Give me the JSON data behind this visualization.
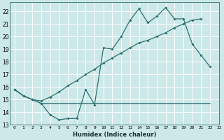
{
  "background_color": "#cce8e8",
  "grid_color": "#ffffff",
  "line_color": "#2d7070",
  "x_label": "Humidex (Indice chaleur)",
  "xlim": [
    -0.5,
    23
  ],
  "ylim": [
    13,
    22.7
  ],
  "yticks": [
    13,
    14,
    15,
    16,
    17,
    18,
    19,
    20,
    21,
    22
  ],
  "xticks": [
    0,
    1,
    2,
    3,
    4,
    5,
    6,
    7,
    8,
    9,
    10,
    11,
    12,
    13,
    14,
    15,
    16,
    17,
    18,
    19,
    20,
    21,
    22,
    23
  ],
  "curve1_x": [
    0,
    1,
    2,
    3,
    4,
    5,
    6,
    7,
    8,
    9,
    10,
    11,
    12,
    13,
    14,
    15,
    16,
    17,
    18,
    19,
    20,
    21,
    22
  ],
  "curve1_y": [
    15.8,
    15.3,
    15.0,
    14.7,
    13.8,
    13.4,
    13.5,
    13.5,
    15.8,
    14.6,
    19.1,
    19.0,
    20.0,
    21.3,
    22.2,
    21.1,
    21.6,
    22.3,
    21.4,
    21.4,
    19.4,
    18.5,
    17.6
  ],
  "curve2_x": [
    0,
    1,
    2,
    3,
    4,
    5,
    6,
    7,
    8,
    9,
    10,
    11,
    12,
    13,
    14,
    15,
    16,
    17,
    18,
    19,
    20,
    21,
    22
  ],
  "curve2_y": [
    15.8,
    15.3,
    15.0,
    14.7,
    14.7,
    14.7,
    14.7,
    14.7,
    14.7,
    14.7,
    14.7,
    14.7,
    14.7,
    14.7,
    14.7,
    14.7,
    14.7,
    14.7,
    14.7,
    14.7,
    14.7,
    14.7,
    14.7
  ],
  "curve3_x": [
    0,
    1,
    2,
    3,
    4,
    5,
    6,
    7,
    8,
    9,
    10,
    11,
    12,
    13,
    14,
    15,
    16,
    17,
    18,
    19,
    20,
    21
  ],
  "curve3_y": [
    15.8,
    15.3,
    15.0,
    14.9,
    15.2,
    15.6,
    16.1,
    16.5,
    17.0,
    17.4,
    17.9,
    18.3,
    18.7,
    19.1,
    19.5,
    19.7,
    20.0,
    20.3,
    20.7,
    21.0,
    21.3,
    21.4
  ]
}
